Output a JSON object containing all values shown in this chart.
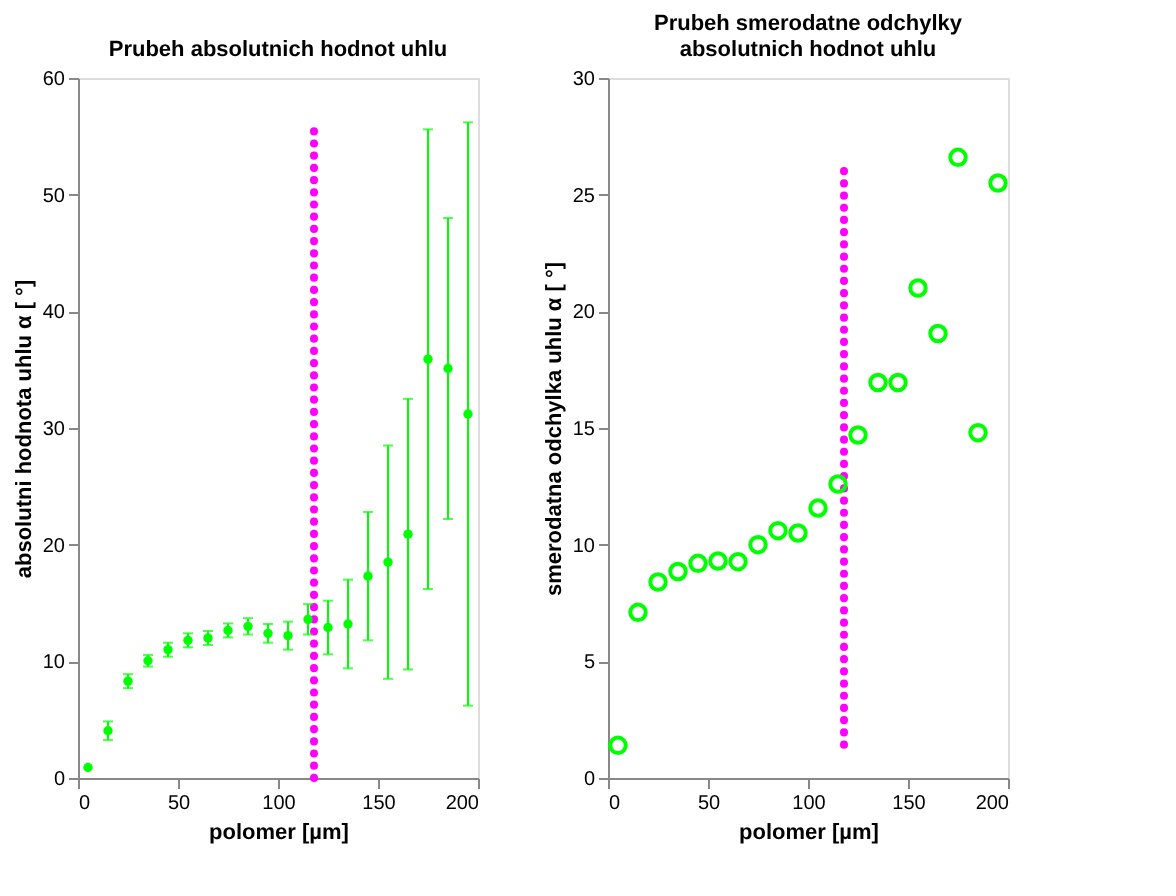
{
  "chart_data": [
    {
      "type": "scatter",
      "title": "Prubeh absolutnich hodnot uhlu",
      "xlabel": "polomer [µm]",
      "ylabel": "absolutni hodnota uhlu α [ °]",
      "xlim": [
        0,
        200
      ],
      "xticks": [
        0,
        50,
        100,
        150,
        200
      ],
      "ylim": [
        0,
        60
      ],
      "yticks": [
        0,
        10,
        20,
        30,
        40,
        50,
        60
      ],
      "grid": false,
      "series": [
        {
          "color": "#00ff00",
          "marker": "circle",
          "x": [
            5,
            15,
            25,
            35,
            45,
            55,
            65,
            75,
            85,
            95,
            105,
            115,
            125,
            135,
            145,
            155,
            165,
            175,
            185,
            195
          ],
          "values": [
            0.9,
            4.05,
            8.3,
            10.05,
            11.0,
            11.8,
            12.0,
            12.65,
            13.0,
            12.4,
            12.2,
            13.6,
            12.9,
            13.2,
            17.3,
            18.5,
            20.9,
            35.9,
            35.1,
            31.2
          ],
          "errors": [
            null,
            0.8,
            0.6,
            0.5,
            0.6,
            0.6,
            0.6,
            0.6,
            0.7,
            0.8,
            1.2,
            1.3,
            2.3,
            3.8,
            5.5,
            10,
            11.6,
            19.7,
            12.9,
            25
          ]
        },
        {
          "type": "line",
          "color": "#ff00ff",
          "marker": "none",
          "line_style": "dotted",
          "x": [
            118,
            118
          ],
          "values": [
            0,
            55.7
          ]
        }
      ]
    },
    {
      "type": "scatter",
      "title": "Prubeh smerodatne odchylky absolutnich hodnot uhlu",
      "xlabel": "polomer [µm]",
      "ylabel": "smerodatna odchylka uhlu α [ °]",
      "xlim": [
        0,
        200
      ],
      "xticks": [
        0,
        50,
        100,
        150,
        200
      ],
      "ylim": [
        0,
        30
      ],
      "yticks": [
        0,
        5,
        10,
        15,
        20,
        25,
        30
      ],
      "grid": false,
      "series": [
        {
          "color": "#00ff00",
          "marker": "circle",
          "x": [
            5,
            15,
            25,
            35,
            45,
            55,
            65,
            75,
            85,
            95,
            105,
            115,
            125,
            135,
            145,
            155,
            165,
            175,
            185,
            195
          ],
          "values": [
            1.4,
            7.1,
            8.4,
            8.85,
            9.2,
            9.3,
            9.27,
            10.0,
            10.6,
            10.5,
            11.57,
            12.6,
            14.7,
            16.95,
            16.95,
            21.0,
            19.05,
            26.6,
            14.8,
            25.5
          ]
        },
        {
          "type": "line",
          "color": "#ff00ff",
          "marker": "none",
          "line_style": "dotted",
          "x": [
            118,
            118
          ],
          "values": [
            1.43,
            26.5
          ]
        }
      ]
    }
  ]
}
